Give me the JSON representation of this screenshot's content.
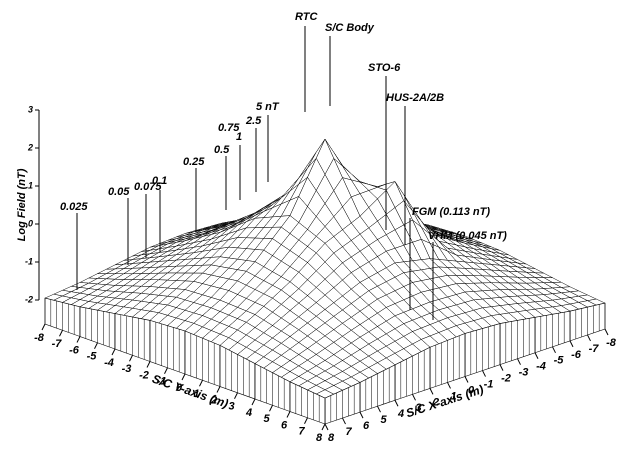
{
  "chart_data": {
    "type": "surface3d",
    "x_label": "S/C X-axis (m)",
    "y_label": "S/C Y-axis (m)",
    "z_label": "Log Field (nT)",
    "x": [
      -8,
      -6,
      -4,
      -2,
      0,
      2,
      4,
      6,
      8
    ],
    "y": [
      -8,
      -6,
      -4,
      -2,
      0,
      2,
      4,
      6,
      8
    ],
    "z": [
      [
        -1.95,
        -1.85,
        -1.7,
        -1.55,
        -1.5,
        -1.55,
        -1.7,
        -1.85,
        -1.95
      ],
      [
        -1.85,
        -1.6,
        -1.3,
        -1.05,
        -1.0,
        -1.05,
        -1.3,
        -1.6,
        -1.85
      ],
      [
        -1.7,
        -1.3,
        -0.9,
        -0.5,
        -0.3,
        -0.5,
        -0.9,
        -1.3,
        -1.7
      ],
      [
        -1.55,
        -1.05,
        -0.5,
        0.2,
        0.6,
        0.2,
        -0.5,
        -1.05,
        -1.55
      ],
      [
        -1.5,
        -1.0,
        -0.3,
        0.6,
        2.3,
        0.6,
        -0.3,
        -1.0,
        -1.5
      ],
      [
        -1.55,
        -1.05,
        -0.5,
        1.2,
        0.6,
        0.2,
        -0.5,
        -1.05,
        -1.55
      ],
      [
        -1.7,
        -1.3,
        -0.9,
        -0.5,
        -0.3,
        -0.5,
        -0.9,
        -1.3,
        -1.7
      ],
      [
        -1.85,
        -1.6,
        -1.3,
        -1.05,
        -1.0,
        -1.05,
        -1.3,
        -1.6,
        -1.85
      ],
      [
        -1.95,
        -1.85,
        -1.7,
        -1.55,
        -1.5,
        -1.55,
        -1.7,
        -1.85,
        -1.95
      ]
    ],
    "xlim": [
      -8,
      8
    ],
    "ylim": [
      -8,
      8
    ],
    "zlim": [
      -2,
      3
    ],
    "xticks": [
      -8,
      -7,
      -6,
      -5,
      -4,
      -3,
      -2,
      -1,
      0,
      1,
      2,
      3,
      4,
      5,
      6,
      7,
      8
    ],
    "yticks": [
      -8,
      -7,
      -6,
      -5,
      -4,
      -3,
      -2,
      -1,
      0,
      1,
      2,
      3,
      4,
      5,
      6,
      7,
      8
    ],
    "zticks": [
      -2,
      -1,
      0,
      1,
      2,
      3
    ],
    "annotations": [
      "RTC",
      "S/C Body",
      "STO-6",
      "HUS-2A/2B",
      "FGM (0.113 nT)",
      "VHM (0.045 nT)",
      "5 nT",
      "2.5",
      "1",
      "0.75",
      "0.5",
      "0.25",
      "0.1",
      "0.075",
      "0.05",
      "0.025"
    ]
  }
}
